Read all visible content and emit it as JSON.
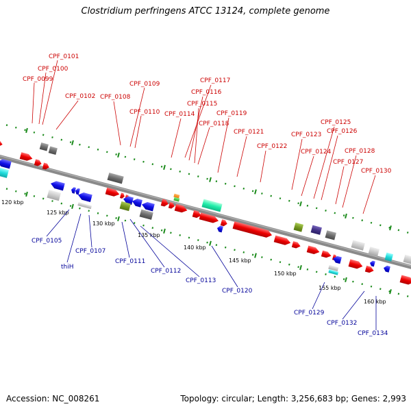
{
  "title": "Clostridium perfringens ATCC 13124, complete genome",
  "footer": {
    "accession": "Accession: NC_008261",
    "summary": "Topology: circular; Length: 3,256,683 bp; Genes: 2,993"
  },
  "colors": {
    "forward": "#ee0000",
    "reverse": "#0a0ae6",
    "backbone": "#888888",
    "tick": "#1a8a1a",
    "label_top": "#cc0000",
    "label_bottom": "#000099",
    "gray": "#777777",
    "light_gray": "#cccccc",
    "olive": "#779922",
    "cyan": "#22dddd",
    "mint": "#22eeaa",
    "navy": "#443388"
  },
  "scale_labels": [
    "120 kbp",
    "125 kbp",
    "130 kbp",
    "135 kbp",
    "140 kbp",
    "145 kbp",
    "150 kbp",
    "155 kbp",
    "160 kbp"
  ],
  "top_genes": [
    "CPF_0101",
    "CPF_0100",
    "CPF_0099",
    "CPF_0102",
    "CPF_0108",
    "CPF_0109",
    "CPF_0110",
    "CPF_0117",
    "CPF_0116",
    "CPF_0115",
    "CPF_0114",
    "CPF_0118",
    "CPF_0119",
    "CPF_0121",
    "CPF_0122",
    "CPF_0123",
    "CPF_0125",
    "CPF_0126",
    "CPF_0124",
    "CPF_0128",
    "CPF_0127",
    "CPF_0130"
  ],
  "bottom_genes": [
    "CPF_0105",
    "thiH",
    "CPF_0107",
    "CPF_0111",
    "CPF_0112",
    "CPF_0113",
    "CPF_0120",
    "CPF_0129",
    "CPF_0132",
    "CPF_0134"
  ]
}
